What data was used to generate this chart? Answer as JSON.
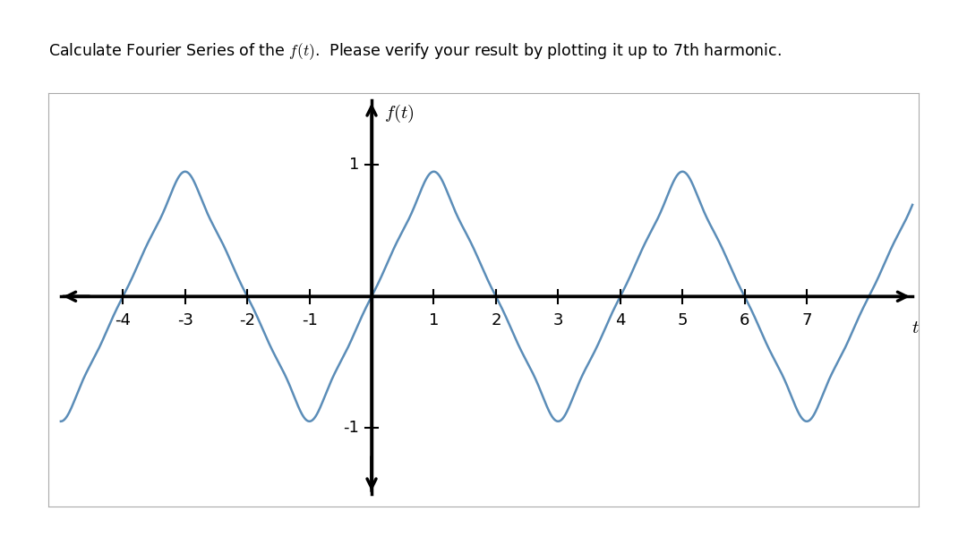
{
  "title_text": "Calculate Fourier Series of the $f(t)$.  Please verify your result by plotting it up to 7th harmonic.",
  "xlim_plot": [
    -5.2,
    8.8
  ],
  "ylim_plot": [
    -1.6,
    1.55
  ],
  "xtick_vals": [
    -4,
    -3,
    -2,
    -1,
    1,
    2,
    3,
    4,
    5,
    6,
    7
  ],
  "ytick_vals": [
    -1,
    1
  ],
  "line_color": "#5b8db8",
  "line_width": 1.8,
  "t_start": -5.0,
  "t_end": 8.7,
  "n_points": 4000,
  "background_color": "#ffffff",
  "period": 4.0,
  "title_fontsize": 12.5,
  "tick_fontsize": 13,
  "axis_label_fontsize": 15,
  "axis_lw": 2.5,
  "arrow_size": 18
}
